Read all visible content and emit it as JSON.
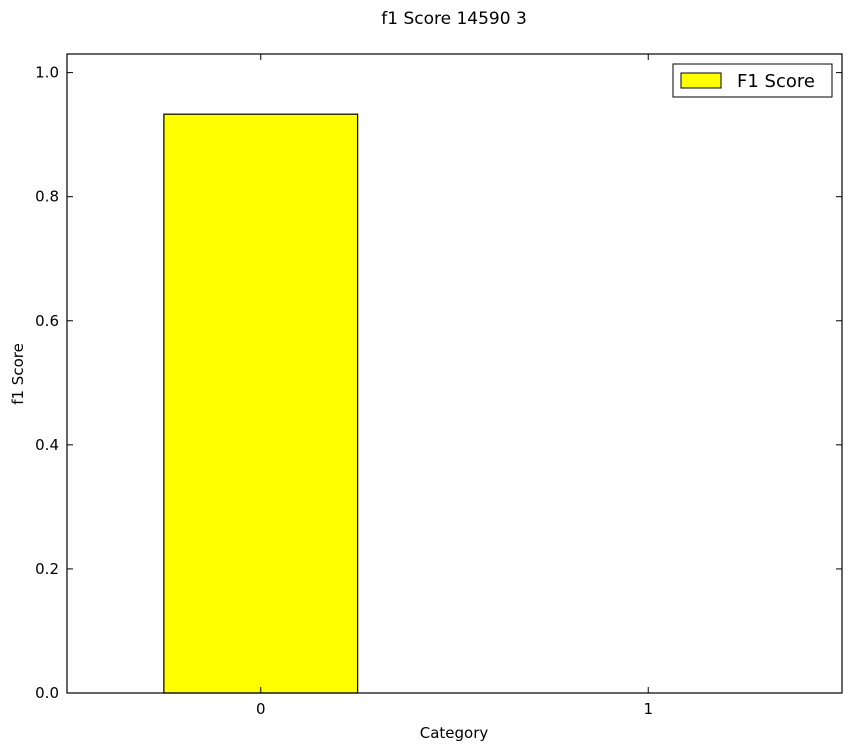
{
  "chart_data": {
    "type": "bar",
    "title": "f1 Score 14590 3",
    "xlabel": "Category",
    "ylabel": "f1 Score",
    "categories": [
      "0",
      "1"
    ],
    "series": [
      {
        "name": "F1 Score",
        "values": [
          0.933,
          0.0
        ],
        "color": "#ffff00"
      }
    ],
    "ylim": [
      0.0,
      1.03
    ],
    "yticks": [
      0.0,
      0.2,
      0.4,
      0.6,
      0.8,
      1.0
    ],
    "ytick_labels": [
      "0.0",
      "0.2",
      "0.4",
      "0.6",
      "0.8",
      "1.0"
    ],
    "grid": false,
    "legend": {
      "position": "top-right",
      "entries": [
        "F1 Score"
      ]
    }
  }
}
